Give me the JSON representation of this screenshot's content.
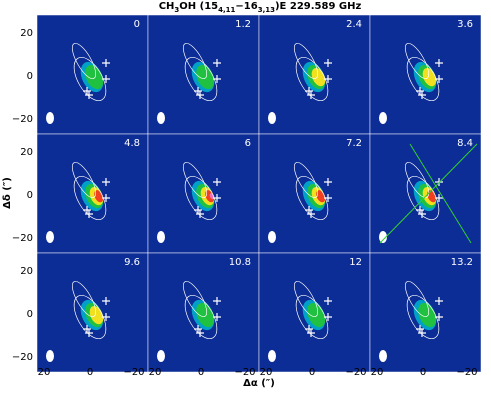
{
  "title": {
    "a": "CH",
    "b": "3",
    "c": "OH (15",
    "d": "4,11",
    "e": "−16",
    "f": "3,13",
    "g": ")E 229.589 GHz"
  },
  "panels": [
    "0",
    "1.2",
    "2.4",
    "3.6",
    "4.8",
    "6",
    "7.2",
    "8.4",
    "9.6",
    "10.8",
    "12",
    "13.2"
  ],
  "x_axis": {
    "label": "Δα (″)",
    "ticks": [
      "20",
      "0",
      "−20"
    ]
  },
  "y_axis": {
    "label": "Δδ (″)",
    "ticks": [
      "20",
      "0",
      "−20"
    ]
  }
}
